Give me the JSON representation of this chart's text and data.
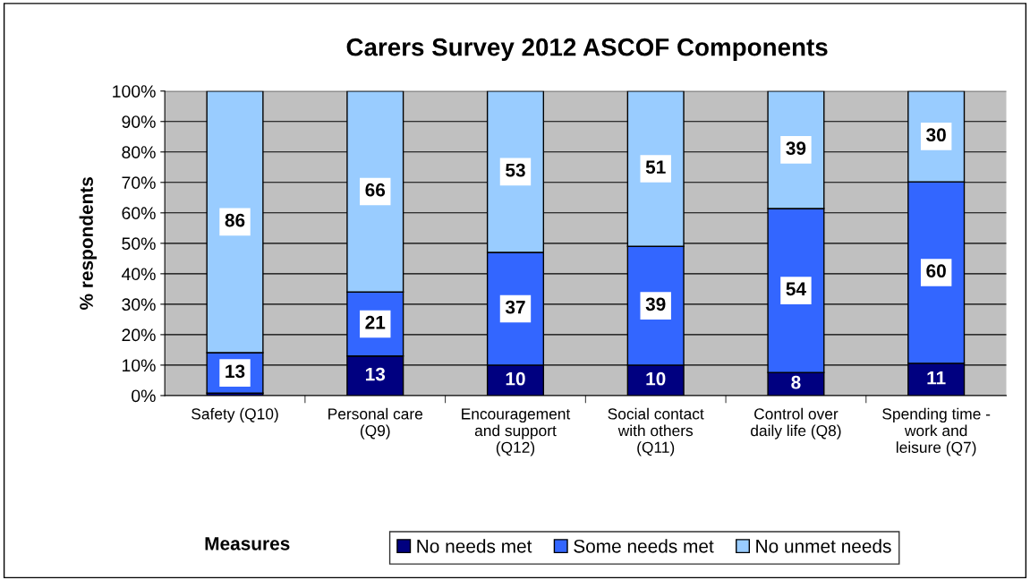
{
  "chart_data": {
    "type": "bar",
    "stacked": true,
    "title": "Carers Survey 2012 ASCOF Components",
    "xlabel": "Measures",
    "ylabel": "% respondents",
    "categories": [
      "Safety (Q10)",
      "Personal care\n(Q9)",
      "Encouragement\nand support\n(Q12)",
      "Social contact\nwith others\n(Q11)",
      "Control over\ndaily life (Q8)",
      "Spending time -\nwork and\nleisure (Q7)"
    ],
    "series": [
      {
        "name": "No needs met",
        "color": "#000080",
        "values": [
          0.8,
          13,
          10,
          10,
          7.6,
          10.6
        ],
        "value_labels": [
          null,
          "13",
          "10",
          "10",
          "8",
          "11"
        ]
      },
      {
        "name": "Some needs met",
        "color": "#3366ff",
        "values": [
          13.3,
          21,
          37,
          39,
          53.8,
          59.6
        ],
        "value_labels": [
          "13",
          "21",
          "37",
          "39",
          "54",
          "60"
        ]
      },
      {
        "name": "No unmet needs",
        "color": "#99ccff",
        "values": [
          85.9,
          66,
          53,
          51,
          38.6,
          29.8
        ],
        "value_labels": [
          "86",
          "66",
          "53",
          "51",
          "39",
          "30"
        ]
      }
    ],
    "ylim": [
      0,
      100
    ],
    "yticks": [
      {
        "value": 0,
        "label": "0%"
      },
      {
        "value": 10,
        "label": "10%"
      },
      {
        "value": 20,
        "label": "20%"
      },
      {
        "value": 30,
        "label": "30%"
      },
      {
        "value": 40,
        "label": "40%"
      },
      {
        "value": 50,
        "label": "50%"
      },
      {
        "value": 60,
        "label": "60%"
      },
      {
        "value": 70,
        "label": "70%"
      },
      {
        "value": 80,
        "label": "80%"
      },
      {
        "value": 90,
        "label": "90%"
      },
      {
        "value": 100,
        "label": "100%"
      }
    ],
    "grid": "y",
    "legend": "bottom"
  }
}
